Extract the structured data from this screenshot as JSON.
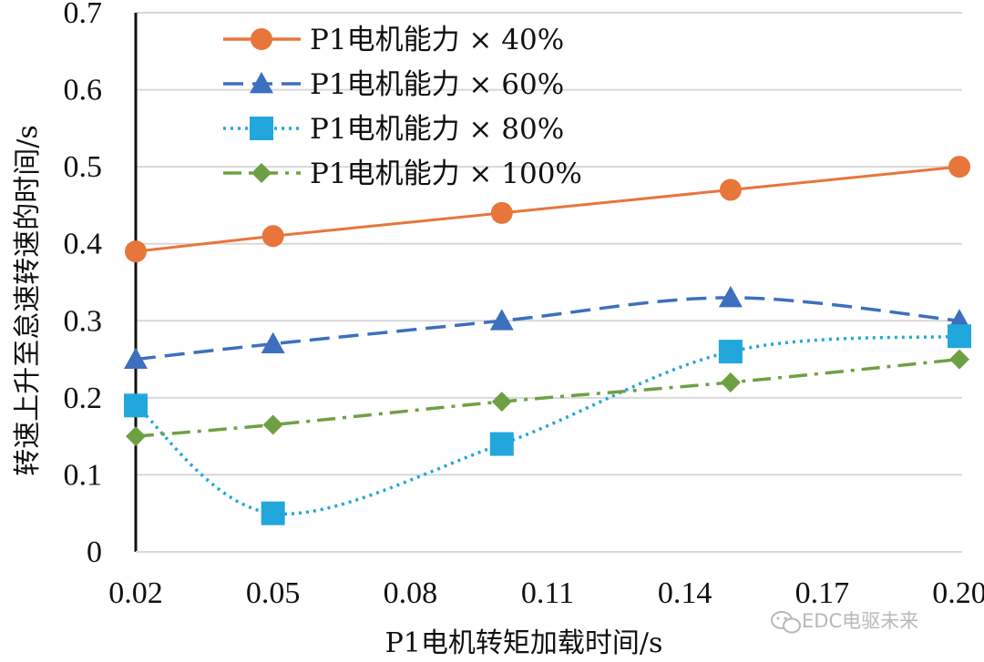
{
  "chart_data": {
    "type": "line",
    "title": "",
    "xlabel": "P1电机转矩加载时间/s",
    "ylabel": "转速上升至怠速转速的时间/s",
    "x_ticks": [
      "0.02",
      "0.05",
      "0.08",
      "0.11",
      "0.14",
      "0.17",
      "0.20"
    ],
    "y_ticks": [
      "0",
      "0.1",
      "0.2",
      "0.3",
      "0.4",
      "0.5",
      "0.6",
      "0.7"
    ],
    "xlim": [
      0.02,
      0.2
    ],
    "ylim": [
      0,
      0.7
    ],
    "grid": true,
    "legend_position": "top-left",
    "series": [
      {
        "name": "P1电机能力 × 40%",
        "color": "#e8753a",
        "marker": "circle",
        "line": "solid",
        "x": [
          0.02,
          0.05,
          0.1,
          0.15,
          0.2
        ],
        "values": [
          0.39,
          0.41,
          0.44,
          0.47,
          0.5
        ]
      },
      {
        "name": "P1电机能力 × 60%",
        "color": "#3d6fbf",
        "marker": "triangle",
        "line": "dashed",
        "x": [
          0.02,
          0.05,
          0.1,
          0.15,
          0.2
        ],
        "values": [
          0.25,
          0.27,
          0.3,
          0.33,
          0.3
        ]
      },
      {
        "name": "P1电机能力 × 80%",
        "color": "#22a7dc",
        "marker": "square",
        "line": "dotted",
        "x": [
          0.02,
          0.05,
          0.1,
          0.15,
          0.2
        ],
        "values": [
          0.19,
          0.05,
          0.14,
          0.26,
          0.28
        ]
      },
      {
        "name": "P1电机能力 × 100%",
        "color": "#6ea043",
        "marker": "diamond",
        "line": "dashdot",
        "x": [
          0.02,
          0.05,
          0.1,
          0.15,
          0.2
        ],
        "values": [
          0.15,
          0.165,
          0.195,
          0.22,
          0.25
        ]
      }
    ]
  },
  "watermark": {
    "text": "EDC电驱未来",
    "icon": "wechat-icon"
  }
}
